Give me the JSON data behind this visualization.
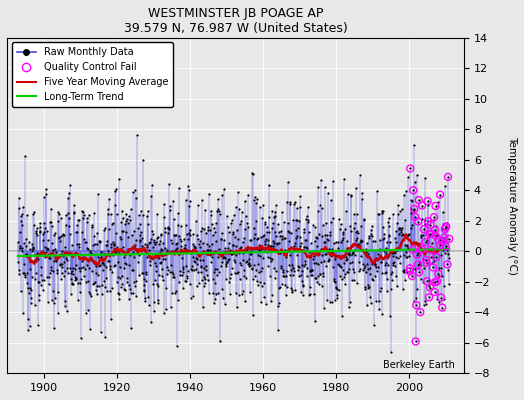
{
  "title": "WESTMINSTER JB POAGE AP",
  "subtitle": "39.579 N, 76.987 W (United States)",
  "ylabel": "Temperature Anomaly (°C)",
  "credit": "Berkeley Earth",
  "xlim": [
    1890,
    2015
  ],
  "ylim": [
    -8,
    14
  ],
  "yticks": [
    -8,
    -6,
    -4,
    -2,
    0,
    2,
    4,
    6,
    8,
    10,
    12,
    14
  ],
  "xticks": [
    1900,
    1920,
    1940,
    1960,
    1980,
    2000
  ],
  "bg_color": "#e8e8e8",
  "raw_line_color": "#4444dd",
  "raw_dot_color": "#000000",
  "qc_fail_color": "#ff00ff",
  "moving_avg_color": "#cc0000",
  "trend_color": "#00cc00",
  "seed": 12345,
  "start_year": 1893,
  "end_year": 2011,
  "data_std": 2.0,
  "trend_slope": 0.004,
  "trend_intercept": -0.3,
  "n_qc_fail": 55,
  "qc_start_year": 2000
}
